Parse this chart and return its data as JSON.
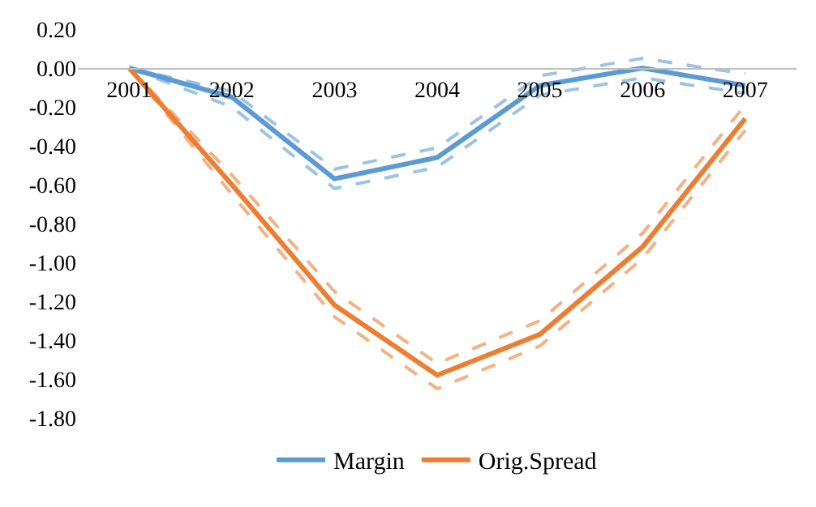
{
  "chart_data": {
    "type": "line",
    "categories": [
      "2001",
      "2002",
      "2003",
      "2004",
      "2005",
      "2006",
      "2007"
    ],
    "series": [
      {
        "color": "#9cc3e5",
        "line_style": "dashed",
        "values": [
          0,
          -0.12,
          -0.52,
          -0.41,
          -0.04,
          0.05,
          -0.03
        ]
      },
      {
        "color": "#9cc3e5",
        "line_style": "dashed",
        "values": [
          0,
          -0.2,
          -0.62,
          -0.51,
          -0.14,
          -0.05,
          -0.13
        ]
      },
      {
        "color": "#f4b183",
        "line_style": "dashed",
        "values": [
          0,
          -0.55,
          -1.15,
          -1.52,
          -1.3,
          -0.85,
          -0.19
        ]
      },
      {
        "color": "#f4b183",
        "line_style": "dashed",
        "values": [
          0,
          -0.65,
          -1.28,
          -1.65,
          -1.43,
          -0.98,
          -0.32
        ]
      },
      {
        "name": "Margin",
        "color": "#5b9bd5",
        "values": [
          0,
          -0.15,
          -0.57,
          -0.46,
          -0.09,
          0.0,
          -0.09
        ]
      },
      {
        "name": "Orig.Spread",
        "color": "#ed7d31",
        "values": [
          0,
          -0.6,
          -1.22,
          -1.58,
          -1.37,
          -0.92,
          -0.26
        ]
      }
    ],
    "ylim": [
      -1.8,
      0.2
    ],
    "yticks": [
      {
        "value": -1.8,
        "label": "-1.80"
      },
      {
        "value": -1.6,
        "label": "-1.60"
      },
      {
        "value": -1.4,
        "label": "-1.40"
      },
      {
        "value": -1.2,
        "label": "-1.20"
      },
      {
        "value": -1.0,
        "label": "-1.00"
      },
      {
        "value": -0.8,
        "label": "-0.80"
      },
      {
        "value": -0.6,
        "label": "-0.60"
      },
      {
        "value": -0.4,
        "label": "-0.40"
      },
      {
        "value": -0.2,
        "label": "-0.20"
      },
      {
        "value": 0,
        "label": "0.00"
      },
      {
        "value": 0.2,
        "label": "0.20"
      }
    ],
    "legend": "bottom",
    "marker": "none",
    "line_style": "solid"
  }
}
